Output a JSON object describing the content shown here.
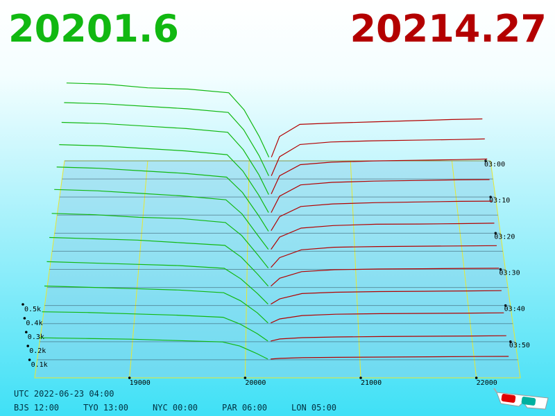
{
  "chart_data": {
    "type": "depth3d",
    "bid_price": 20201.6,
    "ask_price": 20214.27,
    "bid_color": "#11b811",
    "ask_color": "#b30000",
    "xlim": [
      18180,
      22380
    ],
    "xticks": [
      19000,
      20000,
      21000,
      22000
    ],
    "ylim": [
      0,
      500
    ],
    "yticks": [
      {
        "value": 100,
        "label": "0.1k"
      },
      {
        "value": 200,
        "label": "0.2k"
      },
      {
        "value": 300,
        "label": "0.3k"
      },
      {
        "value": 400,
        "label": "0.4k"
      },
      {
        "value": 500,
        "label": "0.5k"
      }
    ],
    "zlim": [
      0,
      60
    ],
    "zticks": [
      {
        "value": 0,
        "label": "03:00"
      },
      {
        "value": 10,
        "label": "03:10"
      },
      {
        "value": 20,
        "label": "03:20"
      },
      {
        "value": 30,
        "label": "03:30"
      },
      {
        "value": 40,
        "label": "03:40"
      },
      {
        "value": 50,
        "label": "03:50"
      }
    ],
    "bid_prices": [
      18200,
      18600,
      19000,
      19400,
      19800,
      19950,
      20100,
      20195
    ],
    "ask_prices": [
      20220,
      20300,
      20500,
      20800,
      21200,
      21600,
      22000,
      22300
    ],
    "snapshots": [
      {
        "minute": 0,
        "bids": [
          640,
          630,
          600,
          590,
          560,
          420,
          200,
          30
        ],
        "asks": [
          30,
          200,
          300,
          310,
          320,
          330,
          340,
          345
        ]
      },
      {
        "minute": 5,
        "bids": [
          620,
          610,
          590,
          570,
          540,
          400,
          190,
          25
        ],
        "asks": [
          25,
          180,
          280,
          300,
          310,
          315,
          320,
          325
        ]
      },
      {
        "minute": 10,
        "bids": [
          600,
          590,
          570,
          550,
          520,
          380,
          180,
          20
        ],
        "asks": [
          25,
          170,
          260,
          280,
          290,
          295,
          300,
          305
        ]
      },
      {
        "minute": 15,
        "bids": [
          560,
          550,
          530,
          510,
          480,
          350,
          160,
          20
        ],
        "asks": [
          20,
          150,
          240,
          260,
          270,
          275,
          280,
          282
        ]
      },
      {
        "minute": 20,
        "bids": [
          520,
          510,
          490,
          470,
          440,
          320,
          140,
          15
        ],
        "asks": [
          20,
          130,
          210,
          230,
          240,
          245,
          250,
          252
        ]
      },
      {
        "minute": 25,
        "bids": [
          480,
          470,
          450,
          430,
          400,
          290,
          120,
          15
        ],
        "asks": [
          15,
          110,
          180,
          200,
          210,
          212,
          215,
          218
        ]
      },
      {
        "minute": 30,
        "bids": [
          430,
          420,
          400,
          390,
          360,
          260,
          110,
          10
        ],
        "asks": [
          15,
          90,
          150,
          170,
          175,
          178,
          180,
          182
        ]
      },
      {
        "minute": 35,
        "bids": [
          380,
          370,
          360,
          340,
          320,
          230,
          100,
          10
        ],
        "asks": [
          10,
          70,
          120,
          135,
          140,
          142,
          145,
          146
        ]
      },
      {
        "minute": 40,
        "bids": [
          330,
          320,
          310,
          300,
          280,
          200,
          90,
          10
        ],
        "asks": [
          10,
          50,
          90,
          100,
          105,
          107,
          110,
          112
        ]
      },
      {
        "minute": 45,
        "bids": [
          280,
          270,
          260,
          250,
          230,
          170,
          80,
          5
        ],
        "asks": [
          5,
          35,
          60,
          70,
          74,
          76,
          78,
          80
        ]
      },
      {
        "minute": 50,
        "bids": [
          220,
          215,
          205,
          195,
          180,
          130,
          60,
          5
        ],
        "asks": [
          5,
          20,
          30,
          35,
          38,
          40,
          42,
          44
        ]
      },
      {
        "minute": 55,
        "bids": [
          160,
          155,
          150,
          140,
          130,
          100,
          45,
          5
        ],
        "asks": [
          5,
          10,
          15,
          18,
          20,
          22,
          24,
          25
        ]
      }
    ],
    "utc_label": "UTC 2022-06-23 04:00",
    "zone_labels": [
      "BJS 12:00",
      "TYO 13:00",
      "NYC 00:00",
      "PAR 06:00",
      "LON 05:00"
    ]
  }
}
